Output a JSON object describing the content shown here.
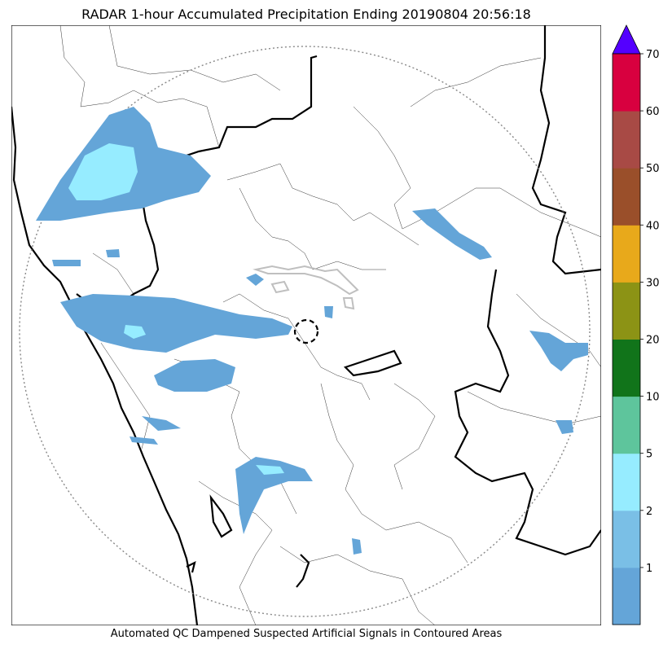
{
  "title": "RADAR 1-hour Accumulated Precipitation Ending 20190804 20:56:18",
  "caption": "Automated QC Dampened Suspected Artificial Signals in Contoured Areas",
  "chart_data": {
    "type": "heatmap",
    "title": "RADAR 1-hour Accumulated Precipitation Ending 20190804 20:56:18",
    "colorbar": {
      "bounds": [
        0,
        1,
        2,
        5,
        10,
        20,
        30,
        40,
        50,
        60,
        70
      ],
      "tick_labels": [
        "1",
        "2",
        "5",
        "10",
        "20",
        "30",
        "40",
        "50",
        "60",
        "70"
      ],
      "colors": [
        "#64a5d8",
        "#7abfe6",
        "#96ecff",
        "#5ec59c",
        "#11741a",
        "#8c9315",
        "#e8a91b",
        "#9a4f2a",
        "#a84a45",
        "#d8003f"
      ],
      "extend_color": "#5400ff",
      "extend": "max"
    },
    "colors": {
      "light_rain": "#64a5d8",
      "moderate_rain": "#96ecff",
      "qc_contour": "#bfbfbf",
      "range_ring": "#888888",
      "boundary_major": "#000000",
      "boundary_minor": "#333333"
    },
    "features": [
      "radar range ring (dotted circle)",
      "radar site (dashed circle)",
      "state/district boundaries",
      "coastline"
    ]
  }
}
